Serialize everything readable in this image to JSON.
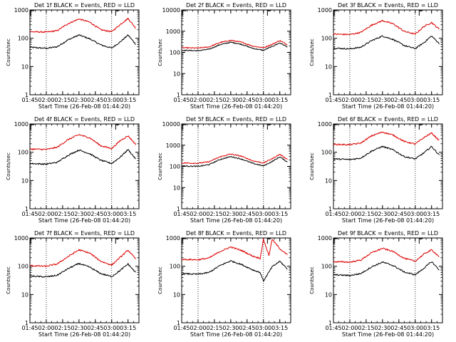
{
  "page": {
    "layout": "3x3 grid of spectrometer detector rate plots",
    "colors": {
      "events": "#000000",
      "lld": "#dd0000",
      "axes": "#000000",
      "background": "#ffffff"
    }
  },
  "chart_data": [
    {
      "type": "line",
      "title": "Det 1f BLACK = Events, RED = LLD",
      "xlabel": "Start Time (26-Feb-08 01:44:20)",
      "ylabel": "Counts/sec",
      "yscale": "log",
      "ylim": [
        1,
        1000
      ],
      "xlim": [
        "01:45",
        "03:25"
      ],
      "x_ticks": [
        "01:45",
        "02:00",
        "02:15",
        "02:30",
        "02:45",
        "03:00",
        "03:15"
      ],
      "y_ticks": [
        {
          "label": "1",
          "value": 1
        },
        {
          "label": "10",
          "value": 10
        },
        {
          "label": "100",
          "value": 100
        },
        {
          "label": "1000",
          "value": 1000
        }
      ],
      "vlines": [
        "02:00",
        "03:00"
      ],
      "corner_marks": [
        "01:45",
        "03:03"
      ],
      "series": [
        {
          "name": "Events",
          "color": "black",
          "x": [
            "01:45",
            "02:00",
            "02:10",
            "02:20",
            "02:30",
            "02:40",
            "02:50",
            "03:00",
            "03:08",
            "03:15",
            "03:22"
          ],
          "values": [
            48,
            44,
            50,
            88,
            130,
            95,
            58,
            45,
            75,
            130,
            62
          ]
        },
        {
          "name": "LLD",
          "color": "red",
          "x": [
            "01:45",
            "02:00",
            "02:10",
            "02:20",
            "02:30",
            "02:40",
            "02:50",
            "03:00",
            "03:08",
            "03:15",
            "03:22"
          ],
          "values": [
            170,
            165,
            185,
            330,
            480,
            370,
            200,
            170,
            310,
            500,
            230
          ]
        }
      ]
    },
    {
      "type": "line",
      "title": "Det 2f BLACK = Events, RED = LLD",
      "xlabel": "Start Time (26-Feb-08 01:44:20)",
      "ylabel": "Counts/sec",
      "yscale": "log",
      "ylim": [
        1,
        10000
      ],
      "xlim": [
        "01:45",
        "03:25"
      ],
      "x_ticks": [
        "01:45",
        "02:00",
        "02:15",
        "02:30",
        "02:45",
        "03:00",
        "03:15"
      ],
      "y_ticks": [
        {
          "label": "1",
          "value": 1
        },
        {
          "label": "10",
          "value": 10
        },
        {
          "label": "100",
          "value": 100
        },
        {
          "label": "1000",
          "value": 1000
        },
        {
          "label": "10000",
          "value": 10000
        }
      ],
      "vlines": [
        "02:00",
        "03:00"
      ],
      "corner_marks": [
        "01:45",
        "03:03"
      ],
      "series": [
        {
          "name": "Events",
          "color": "black",
          "x": [
            "01:45",
            "02:00",
            "02:10",
            "02:20",
            "02:30",
            "02:40",
            "02:50",
            "03:00",
            "03:08",
            "03:15",
            "03:22"
          ],
          "values": [
            125,
            120,
            140,
            230,
            300,
            240,
            155,
            125,
            190,
            280,
            180
          ]
        },
        {
          "name": "LLD",
          "color": "red",
          "x": [
            "01:45",
            "02:00",
            "02:10",
            "02:20",
            "02:30",
            "02:40",
            "02:50",
            "03:00",
            "03:08",
            "03:15",
            "03:22"
          ],
          "values": [
            165,
            160,
            180,
            290,
            370,
            300,
            200,
            165,
            240,
            360,
            230
          ]
        }
      ]
    },
    {
      "type": "line",
      "title": "Det 3f BLACK = Events, RED = LLD",
      "xlabel": "Start Time (26-Feb-08 01:44:20)",
      "ylabel": "Counts/sec",
      "yscale": "log",
      "ylim": [
        1,
        1000
      ],
      "xlim": [
        "01:45",
        "03:25"
      ],
      "x_ticks": [
        "01:45",
        "02:00",
        "02:15",
        "02:30",
        "02:45",
        "03:00",
        "03:15"
      ],
      "y_ticks": [
        {
          "label": "1",
          "value": 1
        },
        {
          "label": "10",
          "value": 10
        },
        {
          "label": "100",
          "value": 100
        },
        {
          "label": "1000",
          "value": 1000
        }
      ],
      "vlines": [
        "02:00",
        "03:00"
      ],
      "corner_marks": [
        "01:45",
        "03:03"
      ],
      "series": [
        {
          "name": "Events",
          "color": "black",
          "x": [
            "01:45",
            "02:00",
            "02:10",
            "02:20",
            "02:30",
            "02:40",
            "02:50",
            "03:00",
            "03:08",
            "03:15",
            "03:22"
          ],
          "values": [
            45,
            42,
            48,
            82,
            120,
            90,
            55,
            43,
            70,
            120,
            65
          ]
        },
        {
          "name": "LLD",
          "color": "red",
          "x": [
            "01:45",
            "02:00",
            "02:10",
            "02:20",
            "02:30",
            "02:40",
            "02:50",
            "03:00",
            "03:08",
            "03:15",
            "03:22"
          ],
          "values": [
            140,
            135,
            160,
            290,
            420,
            320,
            175,
            140,
            260,
            360,
            210
          ]
        }
      ]
    },
    {
      "type": "line",
      "title": "Det 4f BLACK = Events, RED = LLD",
      "xlabel": "Start Time (26-Feb-08 01:44:20)",
      "ylabel": "Counts/sec",
      "yscale": "log",
      "ylim": [
        1,
        1000
      ],
      "xlim": [
        "01:45",
        "03:25"
      ],
      "x_ticks": [
        "01:45",
        "02:00",
        "02:15",
        "02:30",
        "02:45",
        "03:00",
        "03:15"
      ],
      "y_ticks": [
        {
          "label": "1",
          "value": 1
        },
        {
          "label": "10",
          "value": 10
        },
        {
          "label": "100",
          "value": 100
        },
        {
          "label": "1000",
          "value": 1000
        }
      ],
      "vlines": [
        "02:00",
        "03:00"
      ],
      "corner_marks": [
        "01:45",
        "03:03"
      ],
      "series": [
        {
          "name": "Events",
          "color": "black",
          "x": [
            "01:45",
            "02:00",
            "02:10",
            "02:20",
            "02:30",
            "02:40",
            "02:50",
            "03:00",
            "03:08",
            "03:15",
            "03:22"
          ],
          "values": [
            40,
            38,
            44,
            78,
            120,
            88,
            52,
            40,
            68,
            125,
            58
          ]
        },
        {
          "name": "LLD",
          "color": "red",
          "x": [
            "01:45",
            "02:00",
            "02:10",
            "02:20",
            "02:30",
            "02:40",
            "02:50",
            "03:00",
            "03:08",
            "03:15",
            "03:22"
          ],
          "values": [
            130,
            125,
            150,
            280,
            420,
            320,
            170,
            135,
            260,
            380,
            190
          ]
        }
      ]
    },
    {
      "type": "line",
      "title": "Det 5f BLACK = Events, RED = LLD",
      "xlabel": "Start Time (26-Feb-08 01:44:20)",
      "ylabel": "Counts/sec",
      "yscale": "log",
      "ylim": [
        1,
        10000
      ],
      "xlim": [
        "01:45",
        "03:25"
      ],
      "x_ticks": [
        "01:45",
        "02:00",
        "02:15",
        "02:30",
        "02:45",
        "03:00",
        "03:15"
      ],
      "y_ticks": [
        {
          "label": "1",
          "value": 1
        },
        {
          "label": "10",
          "value": 10
        },
        {
          "label": "100",
          "value": 100
        },
        {
          "label": "1000",
          "value": 1000
        },
        {
          "label": "10000",
          "value": 10000
        }
      ],
      "vlines": [
        "02:00",
        "03:00"
      ],
      "corner_marks": [
        "01:45",
        "03:03"
      ],
      "series": [
        {
          "name": "Events",
          "color": "black",
          "x": [
            "01:45",
            "02:00",
            "02:10",
            "02:20",
            "02:30",
            "02:40",
            "02:50",
            "03:00",
            "03:08",
            "03:15",
            "03:22"
          ],
          "values": [
            105,
            100,
            120,
            210,
            290,
            220,
            140,
            105,
            170,
            280,
            160
          ]
        },
        {
          "name": "LLD",
          "color": "red",
          "x": [
            "01:45",
            "02:00",
            "02:10",
            "02:20",
            "02:30",
            "02:40",
            "02:50",
            "03:00",
            "03:08",
            "03:15",
            "03:22"
          ],
          "values": [
            145,
            140,
            165,
            280,
            380,
            300,
            185,
            145,
            230,
            370,
            215
          ]
        }
      ]
    },
    {
      "type": "line",
      "title": "Det 6f BLACK = Events, RED = LLD",
      "xlabel": "Start Time (26-Feb-08 01:44:20)",
      "ylabel": "Counts/sec",
      "yscale": "log",
      "ylim": [
        1,
        1000
      ],
      "xlim": [
        "01:45",
        "03:25"
      ],
      "x_ticks": [
        "01:45",
        "02:00",
        "02:15",
        "02:30",
        "02:45",
        "03:00",
        "03:15"
      ],
      "y_ticks": [
        {
          "label": "1",
          "value": 1
        },
        {
          "label": "10",
          "value": 10
        },
        {
          "label": "100",
          "value": 100
        },
        {
          "label": "1000",
          "value": 1000
        }
      ],
      "vlines": [
        "02:00",
        "03:00"
      ],
      "corner_marks": [
        "01:45",
        "03:03"
      ],
      "series": [
        {
          "name": "Events",
          "color": "black",
          "x": [
            "01:45",
            "02:00",
            "02:10",
            "02:20",
            "02:30",
            "02:40",
            "02:50",
            "03:00",
            "03:08",
            "03:15",
            "03:22"
          ],
          "values": [
            58,
            55,
            62,
            110,
            160,
            120,
            70,
            58,
            95,
            160,
            80
          ]
        },
        {
          "name": "LLD",
          "color": "red",
          "x": [
            "01:45",
            "02:00",
            "02:10",
            "02:20",
            "02:30",
            "02:40",
            "02:50",
            "03:00",
            "03:08",
            "03:15",
            "03:22"
          ],
          "values": [
            190,
            185,
            210,
            380,
            520,
            400,
            240,
            195,
            330,
            480,
            260
          ]
        }
      ]
    },
    {
      "type": "line",
      "title": "Det 7f BLACK = Events, RED = LLD",
      "xlabel": "Start Time (26-Feb-08 01:44:20)",
      "ylabel": "Counts/sec",
      "yscale": "log",
      "ylim": [
        1,
        1000
      ],
      "xlim": [
        "01:45",
        "03:25"
      ],
      "x_ticks": [
        "01:45",
        "02:00",
        "02:15",
        "02:30",
        "02:45",
        "03:00",
        "03:15"
      ],
      "y_ticks": [
        {
          "label": "1",
          "value": 1
        },
        {
          "label": "10",
          "value": 10
        },
        {
          "label": "100",
          "value": 100
        },
        {
          "label": "1000",
          "value": 1000
        }
      ],
      "vlines": [
        "02:00",
        "03:00"
      ],
      "corner_marks": [
        "01:45",
        "03:03"
      ],
      "series": [
        {
          "name": "Events",
          "color": "black",
          "x": [
            "01:45",
            "02:00",
            "02:10",
            "02:20",
            "02:30",
            "02:40",
            "02:50",
            "03:00",
            "03:08",
            "03:15",
            "03:22"
          ],
          "values": [
            45,
            42,
            48,
            82,
            125,
            92,
            55,
            43,
            72,
            120,
            60
          ]
        },
        {
          "name": "LLD",
          "color": "red",
          "x": [
            "01:45",
            "02:00",
            "02:10",
            "02:20",
            "02:30",
            "02:40",
            "02:50",
            "03:00",
            "03:08",
            "03:15",
            "03:22"
          ],
          "values": [
            105,
            100,
            120,
            220,
            380,
            290,
            150,
            110,
            210,
            370,
            180
          ]
        }
      ]
    },
    {
      "type": "line",
      "title": "Det 8f BLACK = Events, RED = LLD",
      "xlabel": "Start Time (26-Feb-08 01:44:20)",
      "ylabel": "Counts/sec",
      "yscale": "log",
      "ylim": [
        1,
        1000
      ],
      "xlim": [
        "01:45",
        "03:25"
      ],
      "x_ticks": [
        "01:45",
        "02:00",
        "02:15",
        "02:30",
        "02:45",
        "03:00",
        "03:15"
      ],
      "y_ticks": [
        {
          "label": "1",
          "value": 1
        },
        {
          "label": "10",
          "value": 10
        },
        {
          "label": "100",
          "value": 100
        },
        {
          "label": "1000",
          "value": 1000
        }
      ],
      "vlines": [
        "02:00",
        "03:00"
      ],
      "corner_marks": [
        "01:45",
        "03:03"
      ],
      "series": [
        {
          "name": "Events",
          "color": "black",
          "x": [
            "01:45",
            "02:00",
            "02:10",
            "02:20",
            "02:30",
            "02:40",
            "02:50",
            "02:57",
            "03:00",
            "03:08",
            "03:15",
            "03:22"
          ],
          "values": [
            55,
            52,
            60,
            105,
            155,
            115,
            75,
            60,
            30,
            95,
            150,
            80
          ]
        },
        {
          "name": "LLD",
          "color": "red",
          "x": [
            "01:45",
            "02:00",
            "02:10",
            "02:20",
            "02:30",
            "02:40",
            "02:50",
            "02:57",
            "03:00",
            "03:05",
            "03:08",
            "03:15",
            "03:22"
          ],
          "values": [
            175,
            170,
            195,
            330,
            480,
            360,
            230,
            190,
            900,
            240,
            900,
            420,
            250
          ]
        }
      ]
    },
    {
      "type": "line",
      "title": "Det 9f BLACK = Events, RED = LLD",
      "xlabel": "Start Time (26-Feb-08 01:44:20)",
      "ylabel": "Counts/sec",
      "yscale": "log",
      "ylim": [
        1,
        1000
      ],
      "xlim": [
        "01:45",
        "03:25"
      ],
      "x_ticks": [
        "01:45",
        "02:00",
        "02:15",
        "02:30",
        "02:45",
        "03:00",
        "03:15"
      ],
      "y_ticks": [
        {
          "label": "1",
          "value": 1
        },
        {
          "label": "10",
          "value": 10
        },
        {
          "label": "100",
          "value": 100
        },
        {
          "label": "1000",
          "value": 1000
        }
      ],
      "vlines": [
        "02:00",
        "03:00"
      ],
      "corner_marks": [
        "01:45",
        "03:03"
      ],
      "series": [
        {
          "name": "Events",
          "color": "black",
          "x": [
            "01:45",
            "02:00",
            "02:10",
            "02:20",
            "02:30",
            "02:40",
            "02:50",
            "03:00",
            "03:08",
            "03:15",
            "03:22"
          ],
          "values": [
            50,
            47,
            55,
            95,
            140,
            105,
            62,
            50,
            85,
            145,
            75
          ]
        },
        {
          "name": "LLD",
          "color": "red",
          "x": [
            "01:45",
            "02:00",
            "02:10",
            "02:20",
            "02:30",
            "02:40",
            "02:50",
            "03:00",
            "03:08",
            "03:15",
            "03:22"
          ],
          "values": [
            145,
            140,
            165,
            300,
            430,
            330,
            190,
            150,
            270,
            380,
            220
          ]
        }
      ]
    }
  ]
}
